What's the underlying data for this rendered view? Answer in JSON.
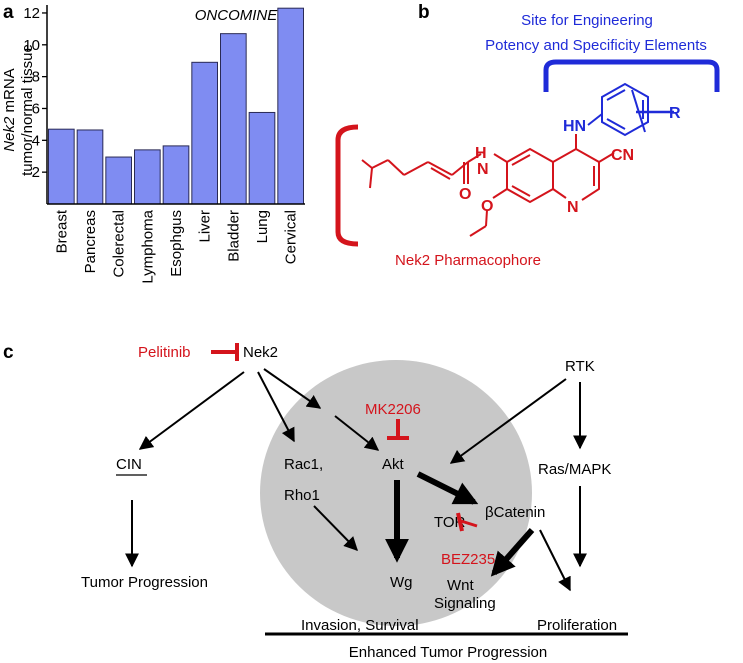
{
  "panels": {
    "a": "a",
    "b": "b",
    "c": "c"
  },
  "chart_data": {
    "type": "bar",
    "title": "ONCOMINE",
    "ylabel_italic": "Nek2",
    "ylabel_rest": " mRNA",
    "ylabel_line2": "tumor/normal tissue",
    "categories": [
      "Breast",
      "Pancreas",
      "Colerectal",
      "Lymphoma",
      "Esophgus",
      "Liver",
      "Bladder",
      "Lung",
      "Cervical"
    ],
    "values": [
      4.7,
      4.65,
      2.95,
      3.4,
      3.65,
      8.9,
      10.7,
      5.75,
      12.3
    ],
    "ylim": [
      0,
      12.5
    ],
    "yticks": [
      2,
      4,
      6,
      8,
      10,
      12
    ],
    "bar_color": "#7f8cf2"
  },
  "structure": {
    "site_label_line1": "Site for Engineering",
    "site_label_line2": "Potency and Specificity Elements",
    "pharmacophore_label": "Nek2 Pharmacophore",
    "atoms": {
      "N": "N",
      "H": "H",
      "O": "O",
      "HN": "HN",
      "CN": "CN",
      "R": "R"
    }
  },
  "pathway": {
    "pelitinib": "Pelitinib",
    "nek2": "Nek2",
    "rtk": "RTK",
    "cin": "CIN",
    "tumor_progression": "Tumor Progression",
    "mk2206": "MK2206",
    "akt": "Akt",
    "rac1": "Rac1,",
    "rho1": "Rho1",
    "ras_mapk": "Ras/MAPK",
    "tor": "TOR",
    "bcatenin": "βCatenin",
    "bez235": "BEZ235",
    "wg": "Wg",
    "wnt": "Wnt",
    "signaling": "Signaling",
    "invasion_survival": "Invasion, Survival",
    "proliferation": "Proliferation",
    "enhanced": "Enhanced Tumor Progression"
  },
  "colors": {
    "red": "#d4141c",
    "blue": "#1f2bd8",
    "grey": "#c8c8c8"
  }
}
